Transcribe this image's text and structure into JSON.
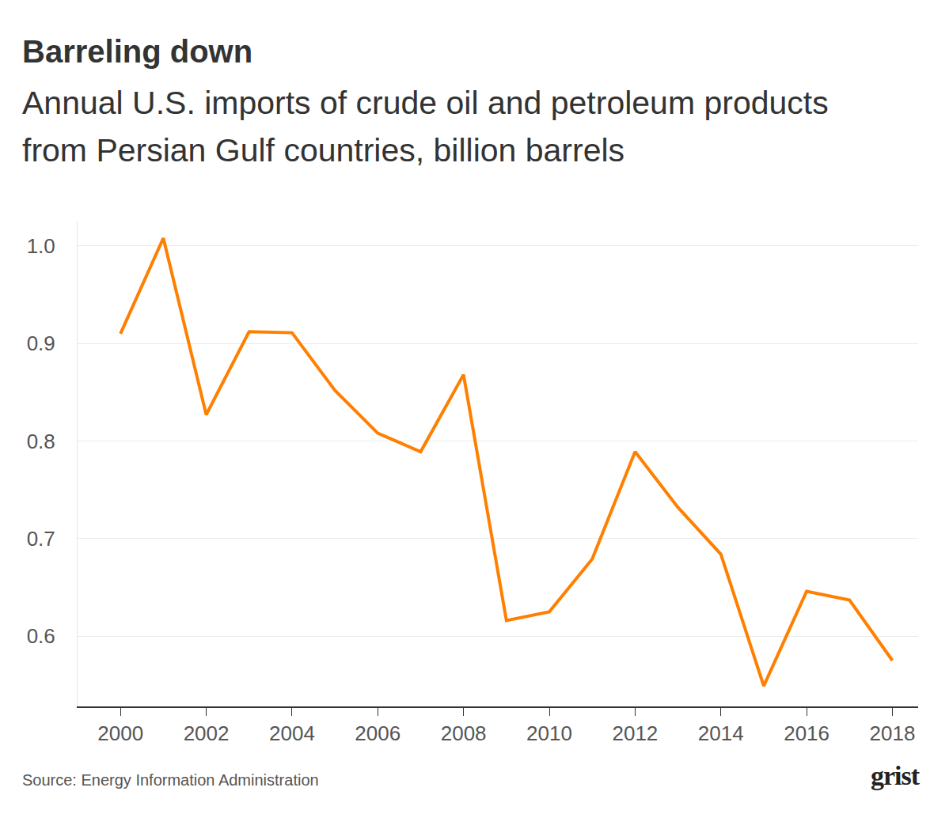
{
  "chart_data": {
    "type": "line",
    "title": "Barreling down",
    "subtitle": "Annual U.S. imports of crude oil and petroleum products from Persian Gulf countries, billion barrels",
    "source": "Source: Energy Information Administration",
    "logo": "grist",
    "x": [
      2000,
      2001,
      2002,
      2003,
      2004,
      2005,
      2006,
      2007,
      2008,
      2009,
      2010,
      2011,
      2012,
      2013,
      2014,
      2015,
      2016,
      2017,
      2018
    ],
    "values": [
      0.91,
      1.008,
      0.827,
      0.912,
      0.911,
      0.852,
      0.808,
      0.789,
      0.868,
      0.616,
      0.625,
      0.679,
      0.789,
      0.732,
      0.684,
      0.549,
      0.646,
      0.637,
      0.575
    ],
    "color": "#ff7f00",
    "xlim": [
      1999,
      2018.6
    ],
    "xticks": [
      2000,
      2002,
      2004,
      2006,
      2008,
      2010,
      2012,
      2014,
      2016,
      2018
    ],
    "ylim": [
      0.528,
      1.025
    ],
    "yticks": [
      0.6,
      0.7,
      0.8,
      0.9,
      {
        "value": 1,
        "label": "1.0"
      }
    ],
    "grid": true
  }
}
